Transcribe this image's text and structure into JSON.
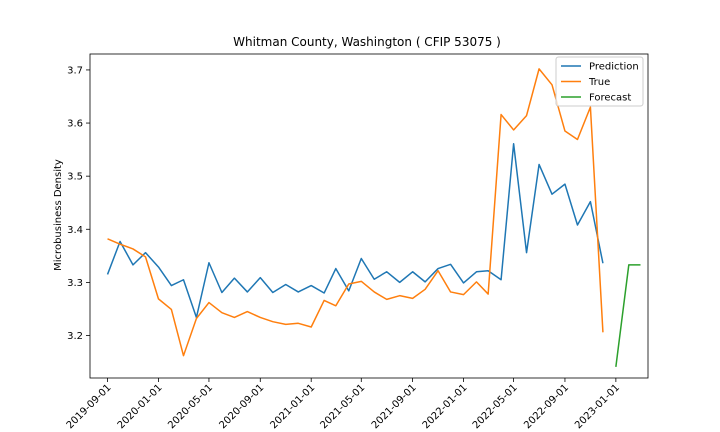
{
  "chart_data": {
    "type": "line",
    "title": "Whitman County, Washington ( CFIP 53075 )",
    "xlabel": "",
    "ylabel": "Microbusiness Density",
    "x_tick_labels": [
      "2019-09-01",
      "2020-01-01",
      "2020-05-01",
      "2020-09-01",
      "2021-01-01",
      "2021-05-01",
      "2021-09-01",
      "2022-01-01",
      "2022-05-01",
      "2022-09-01",
      "2023-01-01"
    ],
    "y_ticks": [
      3.2,
      3.3,
      3.4,
      3.5,
      3.6,
      3.7
    ],
    "xlim": [
      "2019-07-21",
      "2023-03-19"
    ],
    "ylim": [
      3.12,
      3.73
    ],
    "grid": false,
    "legend_position": "top-right",
    "series": [
      {
        "name": "Prediction",
        "color": "#1f77b4",
        "x": [
          "2019-09-01",
          "2019-10-01",
          "2019-11-01",
          "2019-12-01",
          "2020-01-01",
          "2020-02-01",
          "2020-03-01",
          "2020-04-01",
          "2020-05-01",
          "2020-06-01",
          "2020-07-01",
          "2020-08-01",
          "2020-09-01",
          "2020-10-01",
          "2020-11-01",
          "2020-12-01",
          "2021-01-01",
          "2021-02-01",
          "2021-03-01",
          "2021-04-01",
          "2021-05-01",
          "2021-06-01",
          "2021-07-01",
          "2021-08-01",
          "2021-09-01",
          "2021-10-01",
          "2021-11-01",
          "2021-12-01",
          "2022-01-01",
          "2022-02-01",
          "2022-03-01",
          "2022-04-01",
          "2022-05-01",
          "2022-06-01",
          "2022-07-01",
          "2022-08-01",
          "2022-09-01",
          "2022-10-01",
          "2022-11-01",
          "2022-12-01"
        ],
        "values": [
          3.315,
          3.377,
          3.333,
          3.356,
          3.329,
          3.294,
          3.305,
          3.234,
          3.337,
          3.281,
          3.308,
          3.282,
          3.309,
          3.281,
          3.296,
          3.282,
          3.294,
          3.28,
          3.326,
          3.284,
          3.345,
          3.306,
          3.32,
          3.3,
          3.32,
          3.301,
          3.326,
          3.334,
          3.299,
          3.32,
          3.322,
          3.305,
          3.561,
          3.356,
          3.522,
          3.466,
          3.485,
          3.408,
          3.452,
          3.336
        ]
      },
      {
        "name": "True",
        "color": "#ff7f0e",
        "x": [
          "2019-09-01",
          "2019-10-01",
          "2019-11-01",
          "2019-12-01",
          "2020-01-01",
          "2020-02-01",
          "2020-03-01",
          "2020-04-01",
          "2020-05-01",
          "2020-06-01",
          "2020-07-01",
          "2020-08-01",
          "2020-09-01",
          "2020-10-01",
          "2020-11-01",
          "2020-12-01",
          "2021-01-01",
          "2021-02-01",
          "2021-03-01",
          "2021-04-01",
          "2021-05-01",
          "2021-06-01",
          "2021-07-01",
          "2021-08-01",
          "2021-09-01",
          "2021-10-01",
          "2021-11-01",
          "2021-12-01",
          "2022-01-01",
          "2022-02-01",
          "2022-03-01",
          "2022-04-01",
          "2022-05-01",
          "2022-06-01",
          "2022-07-01",
          "2022-08-01",
          "2022-09-01",
          "2022-10-01",
          "2022-11-01",
          "2022-12-01"
        ],
        "values": [
          3.382,
          3.372,
          3.363,
          3.348,
          3.269,
          3.249,
          3.162,
          3.232,
          3.262,
          3.243,
          3.234,
          3.245,
          3.234,
          3.226,
          3.221,
          3.223,
          3.216,
          3.266,
          3.256,
          3.297,
          3.302,
          3.282,
          3.268,
          3.275,
          3.27,
          3.287,
          3.322,
          3.282,
          3.277,
          3.301,
          3.278,
          3.616,
          3.587,
          3.614,
          3.702,
          3.672,
          3.585,
          3.569,
          3.63,
          3.206
        ]
      },
      {
        "name": "Forecast",
        "color": "#2ca02c",
        "x": [
          "2023-01-01",
          "2023-02-01",
          "2023-03-01"
        ],
        "values": [
          3.141,
          3.333,
          3.333
        ]
      }
    ]
  }
}
